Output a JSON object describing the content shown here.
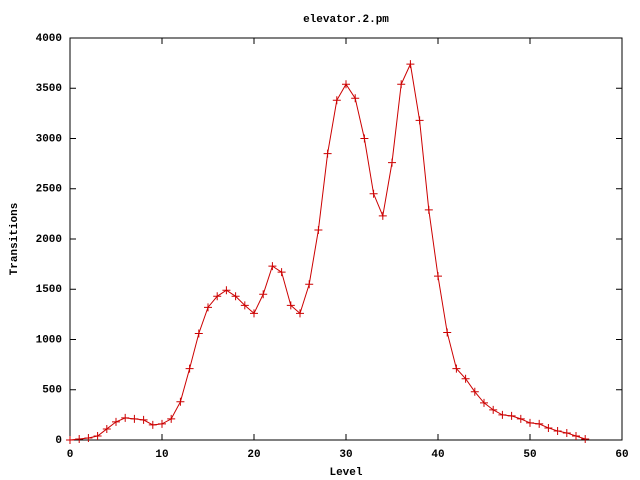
{
  "chart_data": {
    "type": "line",
    "title": "elevator.2.pm",
    "x_label": "Level",
    "y_label": "Transitions",
    "x": [
      0,
      1,
      2,
      3,
      4,
      5,
      6,
      7,
      8,
      9,
      10,
      11,
      12,
      13,
      14,
      15,
      16,
      17,
      18,
      19,
      20,
      21,
      22,
      23,
      24,
      25,
      26,
      27,
      28,
      29,
      30,
      31,
      32,
      33,
      34,
      35,
      36,
      37,
      38,
      39,
      40,
      41,
      42,
      43,
      44,
      45,
      46,
      47,
      48,
      49,
      50,
      51,
      52,
      53,
      54,
      55,
      56
    ],
    "values": [
      0,
      10,
      20,
      40,
      110,
      180,
      220,
      210,
      200,
      150,
      160,
      210,
      380,
      710,
      1060,
      1320,
      1430,
      1490,
      1430,
      1340,
      1260,
      1450,
      1730,
      1670,
      1340,
      1260,
      1550,
      2090,
      2850,
      3380,
      3540,
      3400,
      3000,
      2450,
      2230,
      2760,
      3540,
      3740,
      3180,
      2290,
      1630,
      1070,
      710,
      610,
      480,
      370,
      300,
      250,
      240,
      210,
      170,
      160,
      120,
      90,
      70,
      40,
      10
    ],
    "color": "#cc0000",
    "xlim": [
      0,
      60
    ],
    "xticks": [
      0,
      10,
      20,
      30,
      40,
      50,
      60
    ],
    "ylim": [
      0,
      4000
    ],
    "yticks": [
      0,
      500,
      1000,
      1500,
      2000,
      2500,
      3000,
      3500,
      4000
    ],
    "grid": false
  }
}
